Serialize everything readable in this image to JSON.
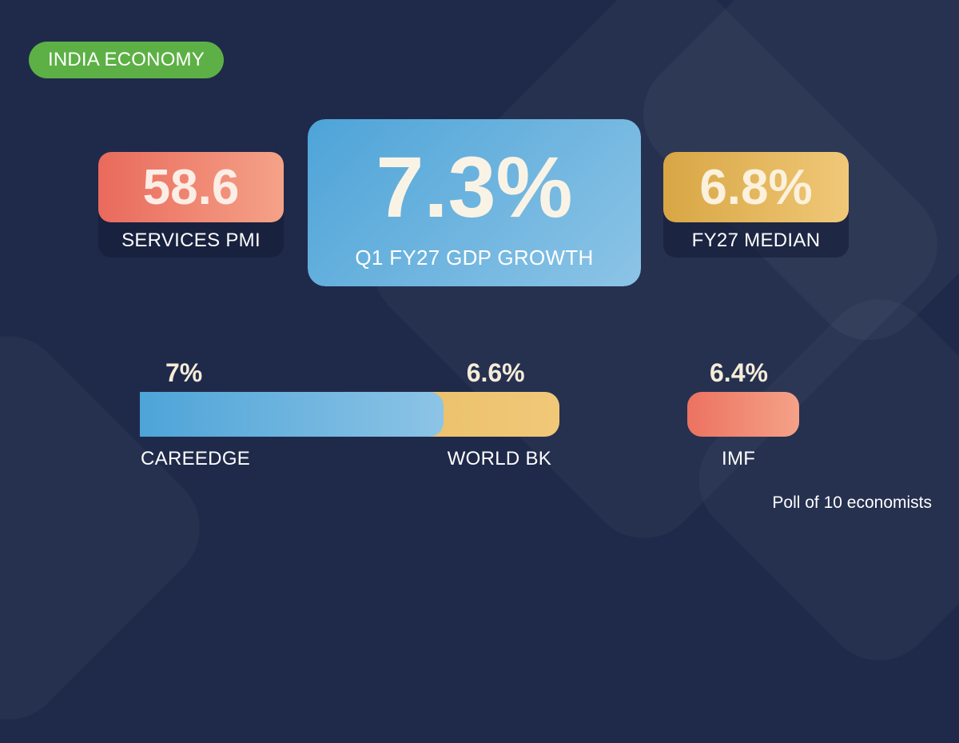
{
  "tag": "INDIA ECONOMY",
  "cards": {
    "pmi": {
      "value": "58.6",
      "label": "SERVICES PMI"
    },
    "gdp": {
      "value": "7.3%",
      "label": "Q1 FY27 GDP GROWTH"
    },
    "median": {
      "value": "6.8%",
      "label": "FY27 MEDIAN"
    }
  },
  "chart_data": {
    "type": "bar",
    "categories": [
      "CAREEDGE",
      "WORLD BK",
      "IMF"
    ],
    "values": [
      7,
      6.6,
      6.4
    ],
    "value_labels": [
      "7%",
      "6.6%",
      "6.4%"
    ],
    "colors": [
      "#4ea4d8",
      "#e3b453",
      "#ec7260"
    ]
  },
  "footnote": "Poll of 10 economists"
}
